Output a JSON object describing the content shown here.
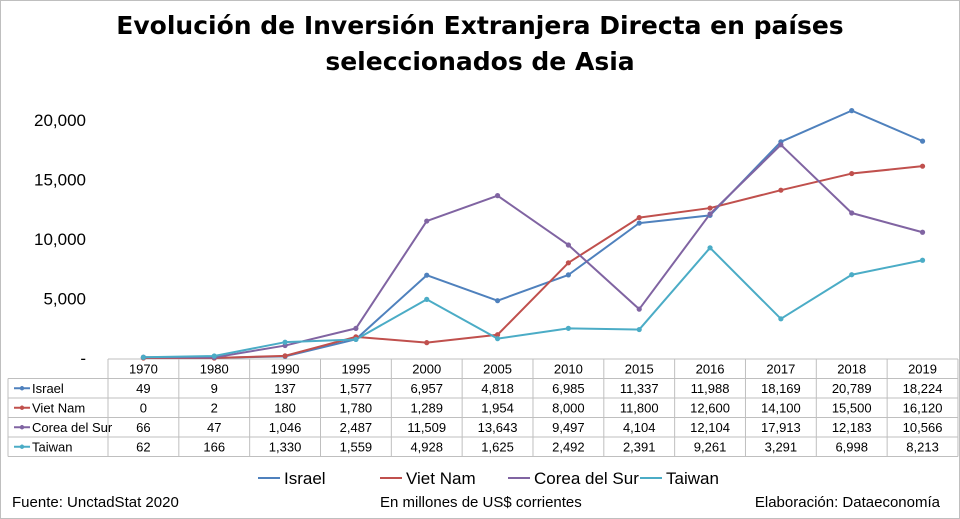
{
  "title_line1": "Evolución de Inversión Extranjera Directa en países",
  "title_line2": "seleccionados de Asia",
  "footer": {
    "source": "Fuente: UnctadStat 2020",
    "units": "En millones de US$ corrientes",
    "credit": "Elaboración: Dataeconomía"
  },
  "chart_data": {
    "type": "line",
    "categories": [
      "1970",
      "1980",
      "1990",
      "1995",
      "2000",
      "2005",
      "2010",
      "2015",
      "2016",
      "2017",
      "2018",
      "2019"
    ],
    "y_ticks": [
      "-",
      "5,000",
      "10,000",
      "15,000",
      "20,000"
    ],
    "ylim": [
      0,
      20000
    ],
    "legend_position": "bottom",
    "grid": true,
    "series": [
      {
        "name": "Israel",
        "color": "#4f81bd",
        "values": [
          49,
          9,
          137,
          1577,
          6957,
          4818,
          6985,
          11337,
          11988,
          18169,
          20789,
          18224
        ],
        "labels": [
          "49",
          "9",
          "137",
          "1,577",
          "6,957",
          "4,818",
          "6,985",
          "11,337",
          "11,988",
          "18,169",
          "20,789",
          "18,224"
        ]
      },
      {
        "name": "Viet Nam",
        "color": "#c0504d",
        "values": [
          0,
          2,
          180,
          1780,
          1289,
          1954,
          8000,
          11800,
          12600,
          14100,
          15500,
          16120
        ],
        "labels": [
          "0",
          "2",
          "180",
          "1,780",
          "1,289",
          "1,954",
          "8,000",
          "11,800",
          "12,600",
          "14,100",
          "15,500",
          "16,120"
        ]
      },
      {
        "name": "Corea del Sur",
        "color": "#8064a2",
        "values": [
          66,
          47,
          1046,
          2487,
          11509,
          13643,
          9497,
          4104,
          12104,
          17913,
          12183,
          10566
        ],
        "labels": [
          "66",
          "47",
          "1,046",
          "2,487",
          "11,509",
          "13,643",
          "9,497",
          "4,104",
          "12,104",
          "17,913",
          "12,183",
          "10,566"
        ]
      },
      {
        "name": "Taiwan",
        "color": "#4bacc6",
        "values": [
          62,
          166,
          1330,
          1559,
          4928,
          1625,
          2492,
          2391,
          9261,
          3291,
          6998,
          8213
        ],
        "labels": [
          "62",
          "166",
          "1,330",
          "1,559",
          "4,928",
          "1,625",
          "2,492",
          "2,391",
          "9,261",
          "3,291",
          "6,998",
          "8,213"
        ]
      }
    ]
  }
}
